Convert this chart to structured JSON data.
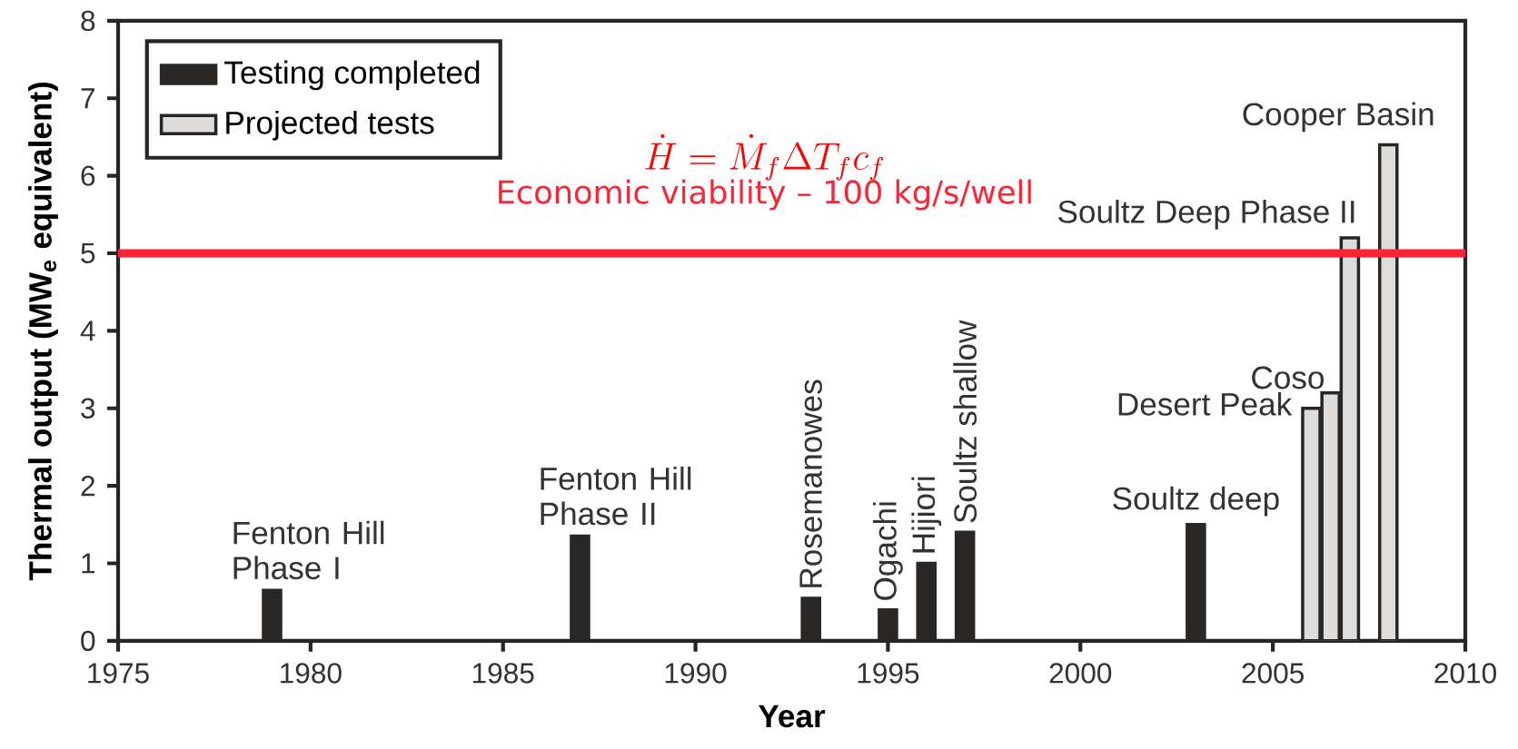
{
  "chart_data": {
    "type": "bar",
    "xlabel": "Year",
    "ylabel": "Thermal output (MW$_{e}$ equivalent)",
    "series": [
      {
        "name": "Testing completed",
        "color": "#2a2826",
        "x": [
          1979,
          1987,
          1993,
          1995,
          1996,
          1997,
          2003
        ],
        "values": [
          0.65,
          1.35,
          0.55,
          0.4,
          1.0,
          1.4,
          1.5
        ]
      },
      {
        "name": "Projected tests",
        "color": "#dddcda",
        "x": [
          2006,
          2006.5,
          2007,
          2008
        ],
        "values": [
          3.0,
          3.2,
          5.2,
          6.4
        ]
      }
    ],
    "xlim": [
      1975,
      2010
    ],
    "xticks": [
      1975,
      1980,
      1985,
      1990,
      1995,
      2000,
      2005,
      2010
    ],
    "ylim": [
      0,
      8
    ],
    "yticks": [
      0,
      1,
      2,
      3,
      4,
      5,
      6,
      7,
      8
    ],
    "ref_lines": [
      {
        "axis": "y",
        "value": 5,
        "label": "Economic viability – 100 kg/s/well",
        "color": "#ff2233"
      }
    ],
    "annotations": [
      {
        "text": "Fenton Hill Phase I",
        "x": 1979,
        "y": 0.65
      },
      {
        "text": "Fenton Hill Phase II",
        "x": 1987,
        "y": 1.35
      },
      {
        "text": "Rosemanowes",
        "x": 1993,
        "y": 0.55
      },
      {
        "text": "Ogachi",
        "x": 1995,
        "y": 0.4
      },
      {
        "text": "Hijiori",
        "x": 1996,
        "y": 1.0
      },
      {
        "text": "Soultz shallow",
        "x": 1997,
        "y": 1.4
      },
      {
        "text": "Soultz deep",
        "x": 2003,
        "y": 1.5
      },
      {
        "text": "Desert Peak",
        "x": 2006,
        "y": 3.0
      },
      {
        "text": "Coso",
        "x": 2006.5,
        "y": 3.2
      },
      {
        "text": "Soultz Deep Phase II",
        "x": 2007,
        "y": 5.2
      },
      {
        "text": "Cooper Basin",
        "x": 2008,
        "y": 6.4
      },
      "\\dot{H} = \\dot{M}_{f} \\Delta T_{f} c_{f}"
    ],
    "legend": "top left",
    "grid": false
  }
}
